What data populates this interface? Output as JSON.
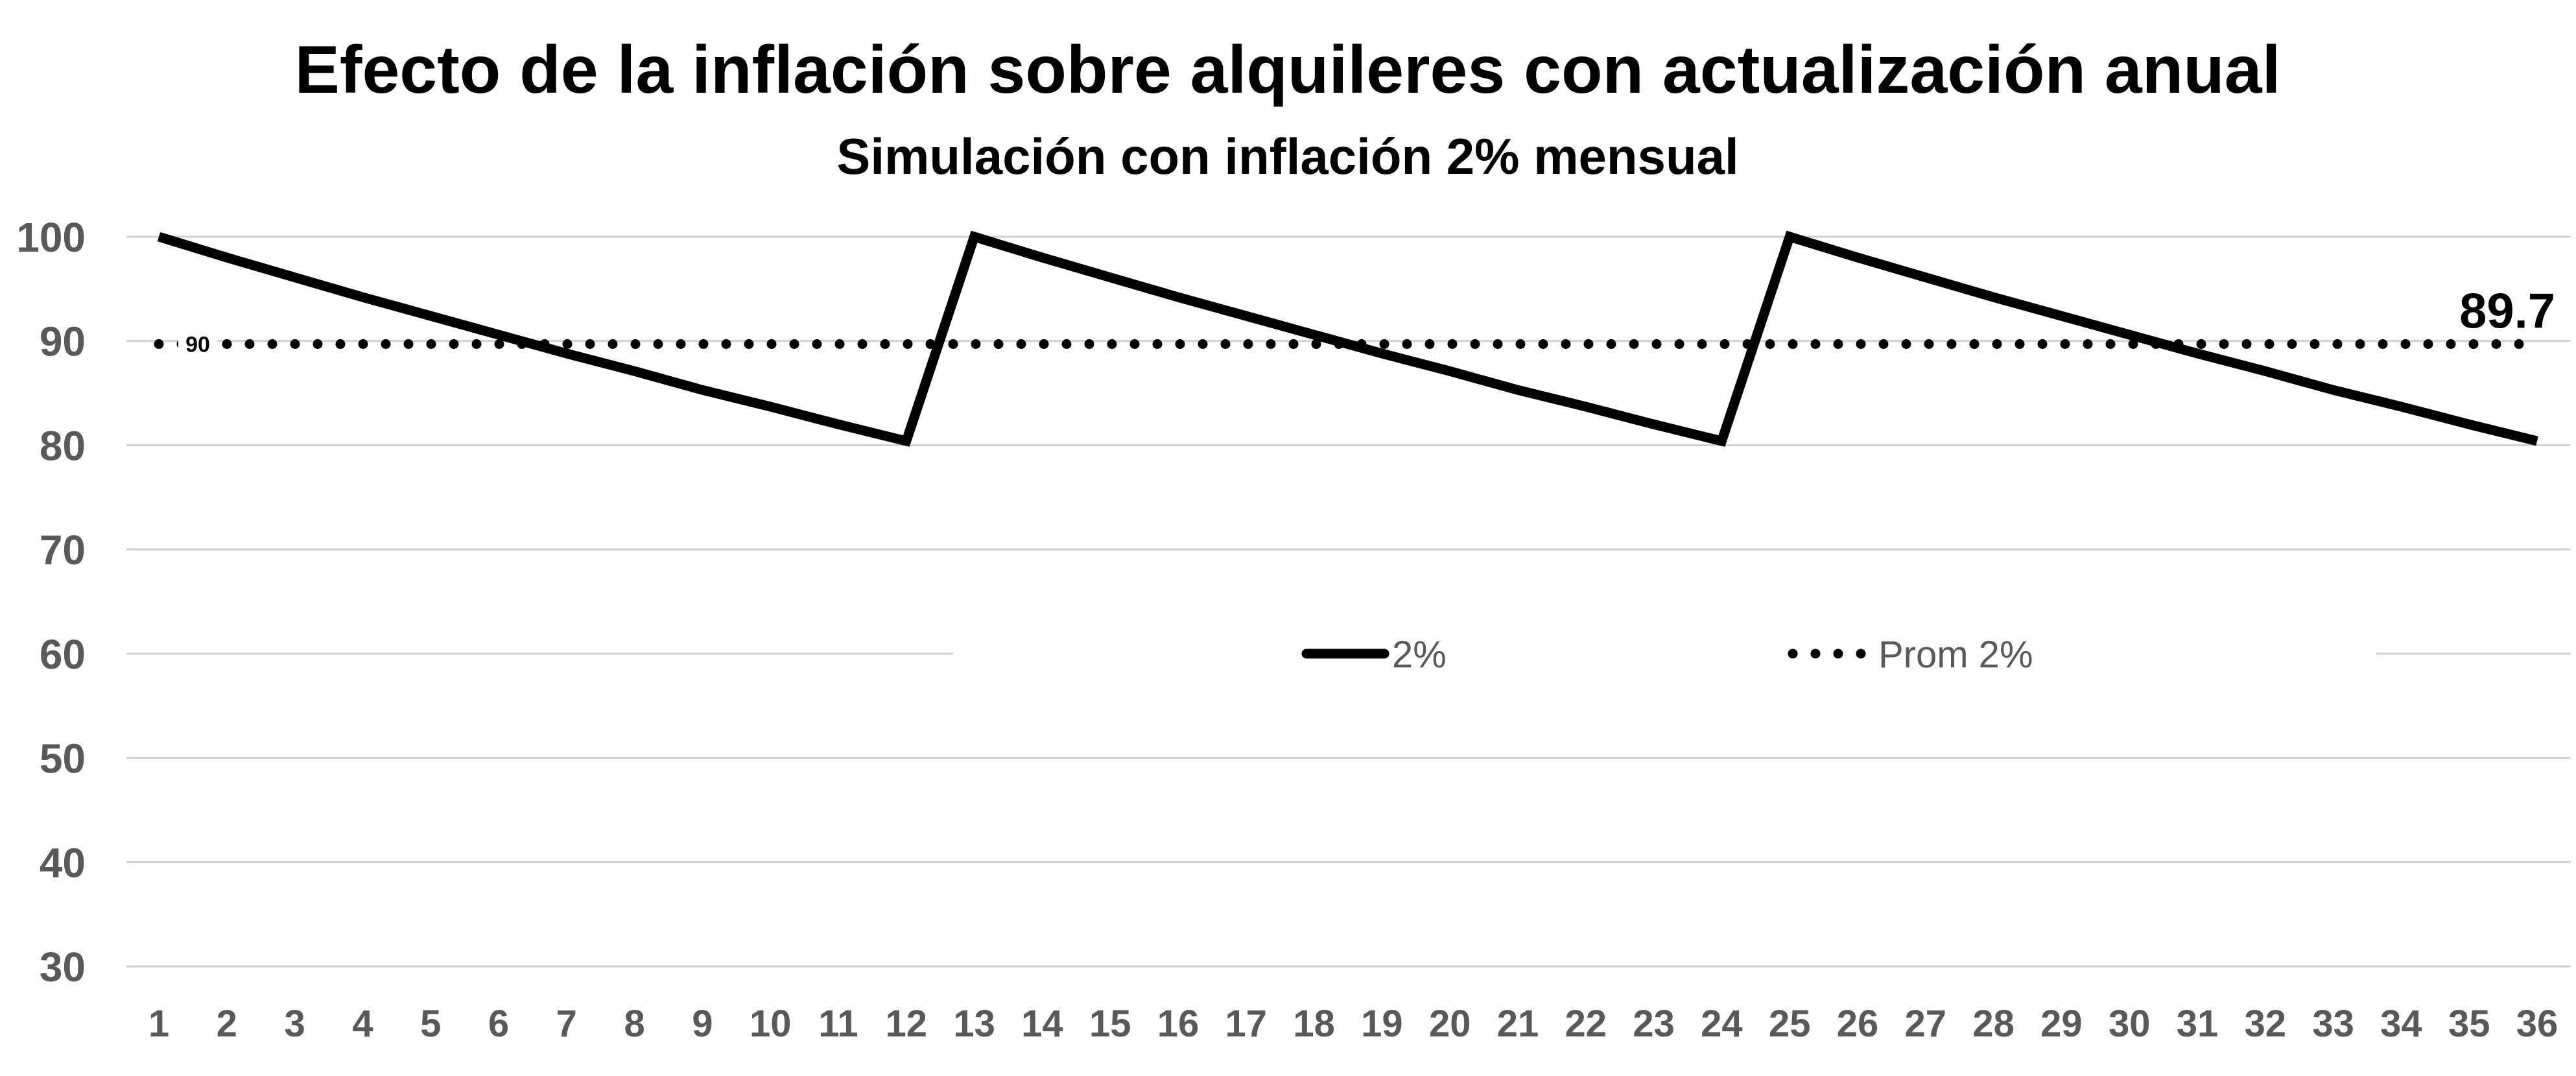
{
  "chart_data": {
    "type": "line",
    "title": "Efecto de la inflación sobre alquileres con actualización anual",
    "subtitle": "Simulación con inflación 2% mensual",
    "xlabel": "",
    "ylabel": "",
    "ylim": [
      30,
      100
    ],
    "y_ticks": [
      30,
      40,
      50,
      60,
      70,
      80,
      90,
      100
    ],
    "grid": "horizontal",
    "legend_position": "center",
    "categories": [
      "1",
      "2",
      "3",
      "4",
      "5",
      "6",
      "7",
      "8",
      "9",
      "10",
      "11",
      "12",
      "13",
      "14",
      "15",
      "16",
      "17",
      "18",
      "19",
      "20",
      "21",
      "22",
      "23",
      "24",
      "25",
      "26",
      "27",
      "28",
      "29",
      "30",
      "31",
      "32",
      "33",
      "34",
      "35",
      "36"
    ],
    "series": [
      {
        "name": "2%",
        "style": "solid",
        "color": "#000000",
        "values": [
          100.0,
          98.0,
          96.1,
          94.2,
          92.4,
          90.6,
          88.8,
          87.1,
          85.3,
          83.7,
          82.0,
          80.4,
          100.0,
          98.0,
          96.1,
          94.2,
          92.4,
          90.6,
          88.8,
          87.1,
          85.3,
          83.7,
          82.0,
          80.4,
          100.0,
          98.0,
          96.1,
          94.2,
          92.4,
          90.6,
          88.8,
          87.1,
          85.3,
          83.7,
          82.0,
          80.4
        ]
      },
      {
        "name": "Prom 2%",
        "style": "dotted",
        "color": "#000000",
        "values": [
          89.7,
          89.7,
          89.7,
          89.7,
          89.7,
          89.7,
          89.7,
          89.7,
          89.7,
          89.7,
          89.7,
          89.7,
          89.7,
          89.7,
          89.7,
          89.7,
          89.7,
          89.7,
          89.7,
          89.7,
          89.7,
          89.7,
          89.7,
          89.7,
          89.7,
          89.7,
          89.7,
          89.7,
          89.7,
          89.7,
          89.7,
          89.7,
          89.7,
          89.7,
          89.7,
          89.7
        ]
      }
    ],
    "annotations": [
      {
        "text": "90",
        "category": "1",
        "value": 89.7,
        "series": "Prom 2%"
      },
      {
        "text": "89.7",
        "category": "36",
        "value": 89.7,
        "series": "Prom 2%"
      }
    ]
  }
}
